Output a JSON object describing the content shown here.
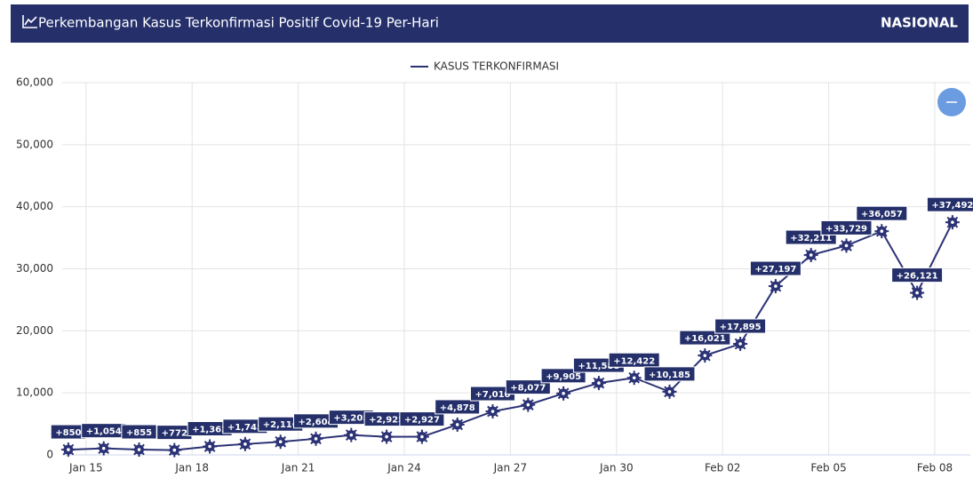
{
  "header": {
    "title": "Perkembangan Kasus Terkonfirmasi Positif Covid-19 Per-Hari",
    "scope": "NASIONAL"
  },
  "chart_data": {
    "type": "line",
    "categories": [
      null,
      "Jan 15",
      null,
      null,
      "Jan 18",
      null,
      null,
      "Jan 21",
      null,
      null,
      "Jan 24",
      null,
      null,
      "Jan 27",
      null,
      null,
      "Jan 30",
      null,
      null,
      "Feb 02",
      null,
      null,
      "Feb 05",
      null,
      null,
      "Feb 08"
    ],
    "series": [
      {
        "name": "KASUS TERKONFIRMASI",
        "color": "#2b3275",
        "values": [
          850,
          1054,
          855,
          772,
          1362,
          1745,
          2116,
          2604,
          3205,
          2925,
          2927,
          4878,
          7010,
          8077,
          9905,
          11588,
          12422,
          10185,
          16021,
          17895,
          27197,
          32211,
          33729,
          36057,
          26121,
          37492
        ],
        "value_labels": [
          "+850",
          "+1,054",
          "+855",
          "+772",
          "+1,362",
          "+1,745",
          "+2,116",
          "+2,604",
          "+3,205",
          "+2,925",
          "+2,927",
          "+4,878",
          "+7,010",
          "+8,077",
          "+9,905",
          "+11,588",
          "+12,422",
          "+10,185",
          "+16,021",
          "+17,895",
          "+27,197",
          "+32,211",
          "+33,729",
          "+36,057",
          "+26,121",
          "+37,492"
        ]
      }
    ],
    "ylim": [
      0,
      60000
    ],
    "yticks": [
      0,
      {
        "value": 10000,
        "label": "10,000"
      },
      {
        "value": 20000,
        "label": "20,000"
      },
      {
        "value": 30000,
        "label": "30,000"
      },
      {
        "value": 40000,
        "label": "40,000"
      },
      {
        "value": 50000,
        "label": "50,000"
      },
      {
        "value": 60000,
        "label": "60,000"
      }
    ],
    "grid": true,
    "legend": "top"
  }
}
